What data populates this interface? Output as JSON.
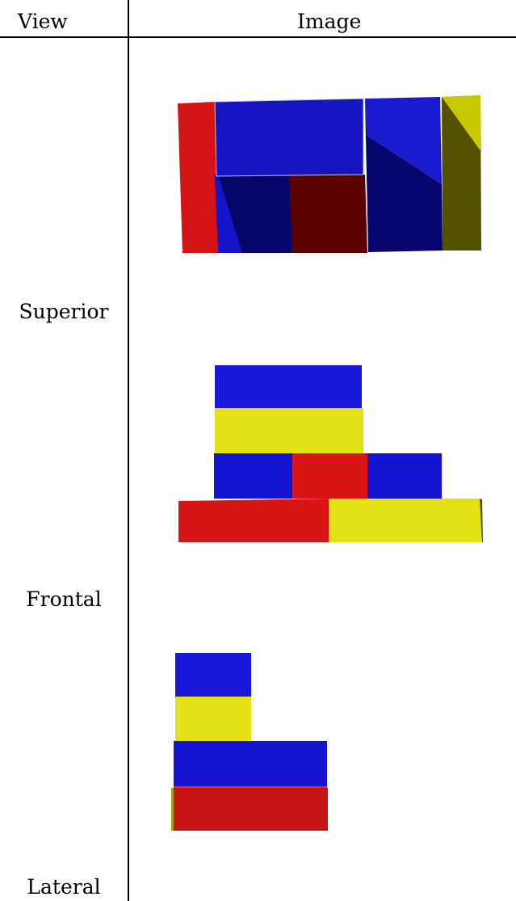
{
  "table": {
    "headers": {
      "view": "View",
      "image": "Image"
    },
    "rows": [
      {
        "label": "Superior"
      },
      {
        "label": "Frontal"
      },
      {
        "label": "Lateral"
      }
    ]
  },
  "colors": {
    "red": "#d41414",
    "dark_red": "#5a0000",
    "blue": "#1414d8",
    "dark_blue": "#050566",
    "yellow": "#e2e214",
    "olive": "#525200"
  }
}
